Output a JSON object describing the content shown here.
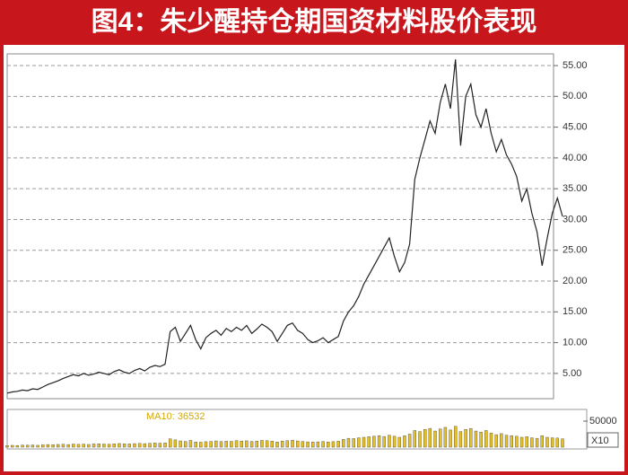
{
  "header": {
    "title": "图4：朱少醒持仓期国资材料股价表现"
  },
  "chart_data": {
    "type": "line",
    "series": [
      {
        "name": "price",
        "color": "#222222",
        "values": [
          1.8,
          2.0,
          2.1,
          2.3,
          2.2,
          2.5,
          2.4,
          2.8,
          3.2,
          3.5,
          3.8,
          4.2,
          4.5,
          4.8,
          4.6,
          5.0,
          4.7,
          4.9,
          5.2,
          5.0,
          4.8,
          5.3,
          5.6,
          5.2,
          5.0,
          5.5,
          5.8,
          5.4,
          6.0,
          6.3,
          6.1,
          6.5,
          11.8,
          12.5,
          10.2,
          11.5,
          12.8,
          10.5,
          9.0,
          10.8,
          11.5,
          12.0,
          11.2,
          12.3,
          11.8,
          12.5,
          12.0,
          12.8,
          11.5,
          12.2,
          13.0,
          12.5,
          11.8,
          10.2,
          11.5,
          12.8,
          13.2,
          12.0,
          11.5,
          10.5,
          10.0,
          10.3,
          10.8,
          10.0,
          10.5,
          11.0,
          13.5,
          15.0,
          16.0,
          17.5,
          19.5,
          21.0,
          22.5,
          24.0,
          25.5,
          27.0,
          24.0,
          21.5,
          23.0,
          26.0,
          36.5,
          40.0,
          43.0,
          46.0,
          44.0,
          49.0,
          52.0,
          48.0,
          56.0,
          42.0,
          50.0,
          52.0,
          47.0,
          45.0,
          48.0,
          44.0,
          41.0,
          43.0,
          40.5,
          39.0,
          37.0,
          33.0,
          35.0,
          31.0,
          28.0,
          22.5,
          27.0,
          31.0,
          33.5,
          30.5
        ]
      }
    ],
    "ylim": [
      0.9,
      56.9
    ],
    "yticks": [
      {
        "value": 5,
        "label": "5.00"
      },
      {
        "value": 10,
        "label": "10.00"
      },
      {
        "value": 15,
        "label": "15.00"
      },
      {
        "value": 20,
        "label": "20.00"
      },
      {
        "value": 25,
        "label": "25.00"
      },
      {
        "value": 30,
        "label": "30.00"
      },
      {
        "value": 35,
        "label": "35.00"
      },
      {
        "value": 40,
        "label": "40.00"
      },
      {
        "value": 45,
        "label": "45.00"
      },
      {
        "value": 50,
        "label": "50.00"
      },
      {
        "value": 55,
        "label": "55.00"
      }
    ],
    "grid": true,
    "volume": {
      "color": "#e8c020",
      "ma_label": "MA10: 36532",
      "scale_label": "X10",
      "ylim": [
        0,
        70700
      ],
      "yticks": [
        {
          "value": 50000,
          "label": "50000"
        }
      ],
      "values": [
        3000,
        3500,
        3200,
        4000,
        3800,
        4200,
        3600,
        4500,
        5000,
        4800,
        5200,
        5500,
        5000,
        6000,
        5400,
        5800,
        5200,
        6200,
        6500,
        6000,
        5600,
        6400,
        7000,
        6600,
        6200,
        6800,
        7200,
        6800,
        7500,
        8000,
        7600,
        8200,
        16000,
        14000,
        12000,
        11000,
        13000,
        10000,
        9500,
        10500,
        11000,
        12000,
        10800,
        11500,
        11200,
        12500,
        11800,
        12200,
        11000,
        11600,
        13000,
        12400,
        11500,
        10000,
        11800,
        12600,
        13500,
        12000,
        11000,
        10200,
        9800,
        10200,
        10800,
        10000,
        10600,
        11500,
        15000,
        17000,
        16500,
        18000,
        19000,
        20000,
        21000,
        22000,
        20500,
        23000,
        21000,
        19000,
        22000,
        25000,
        32000,
        30000,
        34000,
        36000,
        31000,
        35000,
        38000,
        33000,
        40000,
        30000,
        34000,
        36000,
        31000,
        29000,
        32000,
        27000,
        24000,
        26000,
        23000,
        22000,
        21000,
        19000,
        20000,
        18000,
        17000,
        22000,
        19000,
        18000,
        17500,
        16000
      ]
    }
  }
}
